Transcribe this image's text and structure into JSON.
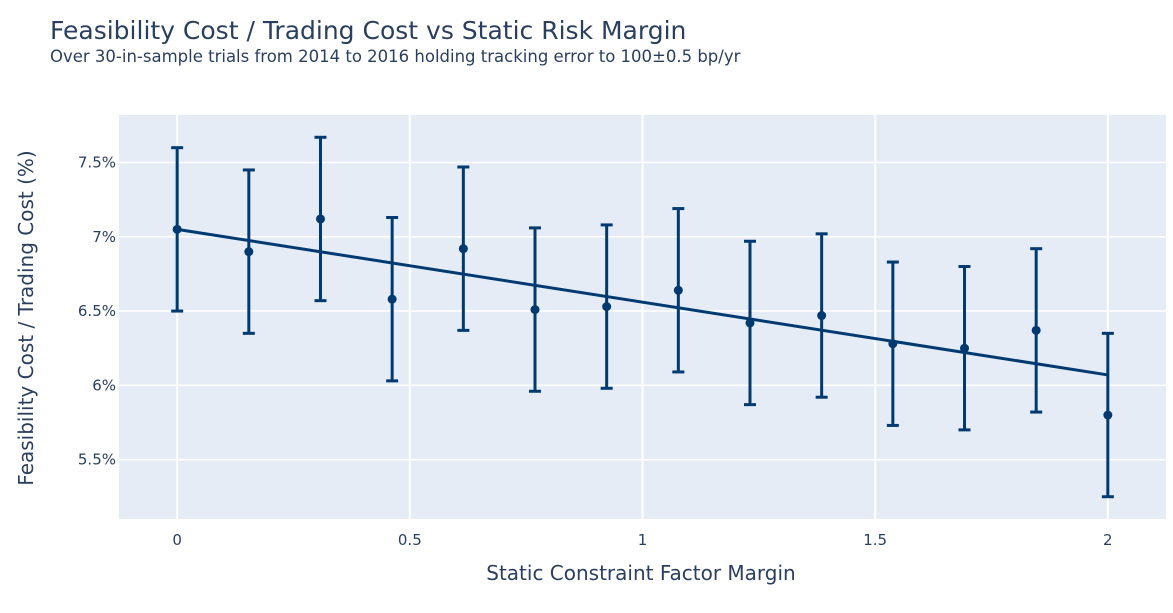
{
  "chart_data": {
    "type": "scatter",
    "title": "Feasibility Cost / Trading Cost vs Static Risk Margin",
    "subtitle": "Over 30-in-sample trials from 2014 to 2016 holding tracking error to 100±0.5 bp/yr",
    "xlabel": "Static Constraint Factor Margin",
    "ylabel": "Feasibility Cost / Trading Cost (%)",
    "xlim": [
      -0.125,
      2.125
    ],
    "ylim": [
      5.1,
      7.82
    ],
    "x_ticks": [
      0,
      0.5,
      1,
      1.5,
      2
    ],
    "x_tick_labels": [
      "0",
      "0.5",
      "1",
      "1.5",
      "2"
    ],
    "y_ticks": [
      5.5,
      6,
      6.5,
      7,
      7.5
    ],
    "y_tick_labels": [
      "5.5%",
      "6%",
      "6.5%",
      "7%",
      "7.5%"
    ],
    "grid": true,
    "legend": "none",
    "colors": {
      "series": "#003a70",
      "plot_bg": "#e5ecf6",
      "grid": "#ffffff",
      "text": "#2a3f5f"
    },
    "points": [
      {
        "x": 0.0,
        "y": 7.05,
        "err": 0.55
      },
      {
        "x": 0.154,
        "y": 6.9,
        "err": 0.55
      },
      {
        "x": 0.308,
        "y": 7.12,
        "err": 0.55
      },
      {
        "x": 0.462,
        "y": 6.58,
        "err": 0.55
      },
      {
        "x": 0.615,
        "y": 6.92,
        "err": 0.55
      },
      {
        "x": 0.769,
        "y": 6.51,
        "err": 0.55
      },
      {
        "x": 0.923,
        "y": 6.53,
        "err": 0.55
      },
      {
        "x": 1.077,
        "y": 6.64,
        "err": 0.55
      },
      {
        "x": 1.231,
        "y": 6.42,
        "err": 0.55
      },
      {
        "x": 1.385,
        "y": 6.47,
        "err": 0.55
      },
      {
        "x": 1.538,
        "y": 6.28,
        "err": 0.55
      },
      {
        "x": 1.692,
        "y": 6.25,
        "err": 0.55
      },
      {
        "x": 1.846,
        "y": 6.37,
        "err": 0.55
      },
      {
        "x": 2.0,
        "y": 5.8,
        "err": 0.55
      }
    ],
    "trend_line": {
      "x": [
        0,
        2
      ],
      "y": [
        7.05,
        6.07
      ]
    }
  }
}
